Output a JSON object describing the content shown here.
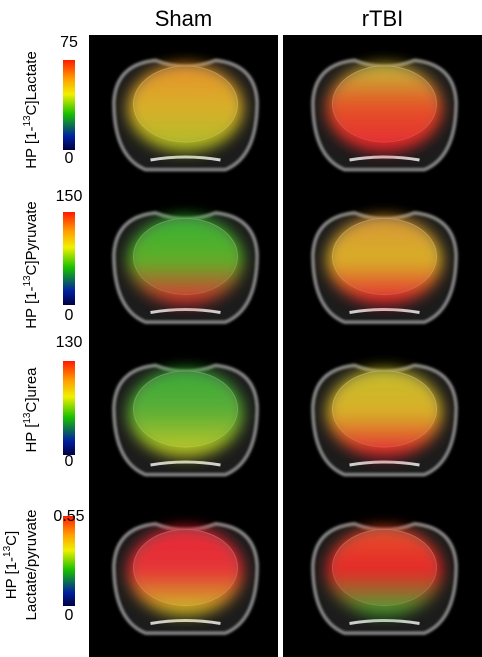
{
  "columns": [
    "Sham",
    "rTBI"
  ],
  "rows": [
    {
      "label_lines": [
        [
          "HP [1-",
          "13",
          "C]Lactate"
        ]
      ],
      "scale_max": 75,
      "scale_min": 0
    },
    {
      "label_lines": [
        [
          "HP [1-",
          "13",
          "C]Pyruvate"
        ]
      ],
      "scale_max": 150,
      "scale_min": 0
    },
    {
      "label_lines": [
        [
          "HP [",
          "13",
          "C]urea"
        ]
      ],
      "scale_max": 130,
      "scale_min": 0
    },
    {
      "label_lines": [
        [
          "HP [1-",
          "13",
          "C]"
        ],
        [
          "Lactate/pyruvate"
        ]
      ],
      "scale_max": 0.55,
      "scale_min": 0
    }
  ]
}
